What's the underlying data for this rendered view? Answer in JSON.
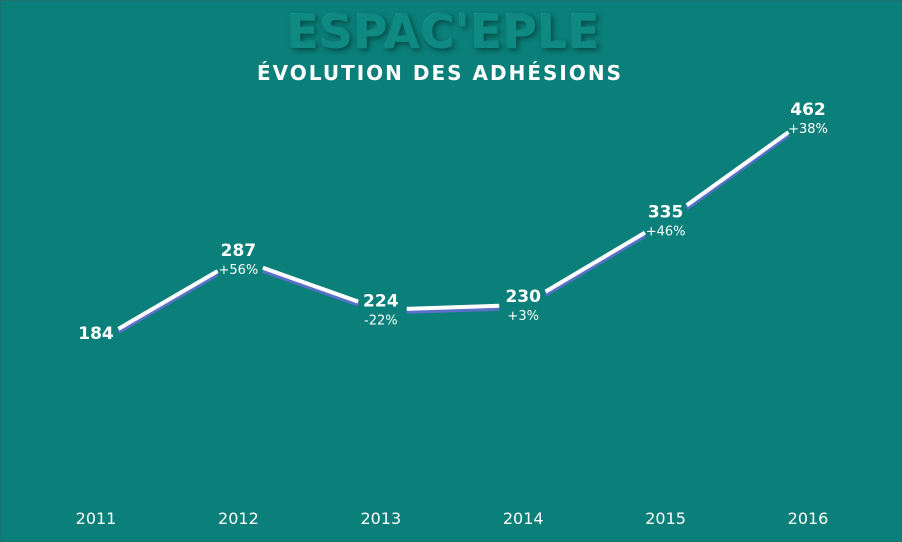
{
  "header": {
    "brand": "ESPAC'EPLE",
    "title": "ÉVOLUTION DES ADHÉSIONS"
  },
  "chart_data": {
    "type": "line",
    "title": "ÉVOLUTION DES ADHÉSIONS",
    "categories": [
      "2011",
      "2012",
      "2013",
      "2014",
      "2015",
      "2016"
    ],
    "series": [
      {
        "values": [
          184,
          287,
          224,
          230,
          335,
          462
        ],
        "value_labels": [
          "184",
          "287",
          "224",
          "230",
          "335",
          "462"
        ],
        "change_labels": [
          "",
          "+56%",
          "-22%",
          "+3%",
          "+46%",
          "+38%"
        ]
      }
    ],
    "ylim": [
      0,
      520
    ],
    "grid": false,
    "legend": "none",
    "colors": {
      "background": "#0b7f79",
      "line": "#ffffff",
      "line_shadow": "#5a6fc8",
      "drop_lines": "#ffffff",
      "text": "#ffffff"
    }
  }
}
